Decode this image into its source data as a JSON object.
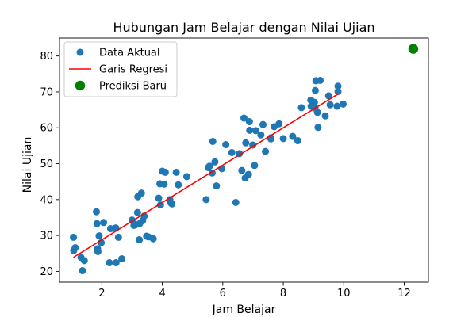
{
  "chart_data": {
    "type": "scatter",
    "title": "Hubungan Jam Belajar dengan Nilai Ujian",
    "xlabel": "Jam Belajar",
    "ylabel": "Nilai Ujian",
    "xlim": [
      0.6,
      12.8
    ],
    "ylim": [
      17.0,
      85.0
    ],
    "xticks": [
      2,
      4,
      6,
      8,
      10,
      12
    ],
    "yticks": [
      20,
      30,
      40,
      50,
      60,
      70,
      80
    ],
    "grid": false,
    "legend_position": "top-left",
    "colors": {
      "actual": "#1f77b4",
      "regression": "#ff0000",
      "prediction": "#008000"
    },
    "legend": [
      {
        "label": "Data Aktual",
        "kind": "marker",
        "color_key": "actual"
      },
      {
        "label": "Garis Regresi",
        "kind": "line",
        "color_key": "regression"
      },
      {
        "label": "Prediksi Baru",
        "kind": "marker-large",
        "color_key": "prediction"
      }
    ],
    "series": [
      {
        "name": "Data Aktual",
        "kind": "scatter",
        "points": [
          [
            1.06,
            29.5
          ],
          [
            1.07,
            25.8
          ],
          [
            1.12,
            26.6
          ],
          [
            1.31,
            23.9
          ],
          [
            1.36,
            20.2
          ],
          [
            1.42,
            23.0
          ],
          [
            1.82,
            36.6
          ],
          [
            1.84,
            33.3
          ],
          [
            1.86,
            26.3
          ],
          [
            1.87,
            25.5
          ],
          [
            1.91,
            29.9
          ],
          [
            1.98,
            28.0
          ],
          [
            2.06,
            33.6
          ],
          [
            2.25,
            22.4
          ],
          [
            2.29,
            31.9
          ],
          [
            2.46,
            32.1
          ],
          [
            2.47,
            22.4
          ],
          [
            2.55,
            29.5
          ],
          [
            2.66,
            23.5
          ],
          [
            3.0,
            34.3
          ],
          [
            3.06,
            32.8
          ],
          [
            3.12,
            33.0
          ],
          [
            3.18,
            36.4
          ],
          [
            3.19,
            40.8
          ],
          [
            3.24,
            28.8
          ],
          [
            3.25,
            33.3
          ],
          [
            3.31,
            41.8
          ],
          [
            3.35,
            34.1
          ],
          [
            3.4,
            35.4
          ],
          [
            3.48,
            29.8
          ],
          [
            3.54,
            29.6
          ],
          [
            3.7,
            29.1
          ],
          [
            3.88,
            40.4
          ],
          [
            3.92,
            44.4
          ],
          [
            3.94,
            38.5
          ],
          [
            4.0,
            47.9
          ],
          [
            4.06,
            44.3
          ],
          [
            4.1,
            47.6
          ],
          [
            4.25,
            40.0
          ],
          [
            4.28,
            39.1
          ],
          [
            4.32,
            38.8
          ],
          [
            4.46,
            47.6
          ],
          [
            4.53,
            44.1
          ],
          [
            4.81,
            46.4
          ],
          [
            5.45,
            40.0
          ],
          [
            5.52,
            48.9
          ],
          [
            5.56,
            49.3
          ],
          [
            5.65,
            47.4
          ],
          [
            5.67,
            56.2
          ],
          [
            5.74,
            50.5
          ],
          [
            5.79,
            43.8
          ],
          [
            5.97,
            48.6
          ],
          [
            6.1,
            55.3
          ],
          [
            6.3,
            53.1
          ],
          [
            6.43,
            39.2
          ],
          [
            6.55,
            52.8
          ],
          [
            6.63,
            48.1
          ],
          [
            6.7,
            62.7
          ],
          [
            6.74,
            46.0
          ],
          [
            6.76,
            55.8
          ],
          [
            6.85,
            47.0
          ],
          [
            6.88,
            61.7
          ],
          [
            6.89,
            59.3
          ],
          [
            6.99,
            55.2
          ],
          [
            7.05,
            49.5
          ],
          [
            7.09,
            59.2
          ],
          [
            7.26,
            58.0
          ],
          [
            7.33,
            60.9
          ],
          [
            7.41,
            53.4
          ],
          [
            7.59,
            57.2
          ],
          [
            7.59,
            56.9
          ],
          [
            7.7,
            60.3
          ],
          [
            7.86,
            61.1
          ],
          [
            8.0,
            57.0
          ],
          [
            8.31,
            57.6
          ],
          [
            8.48,
            56.4
          ],
          [
            8.6,
            65.6
          ],
          [
            8.91,
            67.7
          ],
          [
            8.92,
            66.0
          ],
          [
            9.03,
            67.1
          ],
          [
            9.05,
            65.5
          ],
          [
            9.06,
            70.4
          ],
          [
            9.08,
            73.1
          ],
          [
            9.13,
            64.3
          ],
          [
            9.15,
            60.1
          ],
          [
            9.22,
            73.2
          ],
          [
            9.39,
            63.3
          ],
          [
            9.5,
            68.9
          ],
          [
            9.55,
            66.4
          ],
          [
            9.78,
            66.0
          ],
          [
            9.81,
            70.1
          ],
          [
            9.81,
            71.6
          ],
          [
            9.98,
            66.6
          ]
        ]
      },
      {
        "name": "Garis Regresi",
        "kind": "line",
        "x": [
          1.06,
          9.81
        ],
        "y": [
          23.9,
          69.4
        ]
      },
      {
        "name": "Prediksi Baru",
        "kind": "scatter-large",
        "points": [
          [
            12.3,
            82.0
          ]
        ]
      }
    ]
  }
}
